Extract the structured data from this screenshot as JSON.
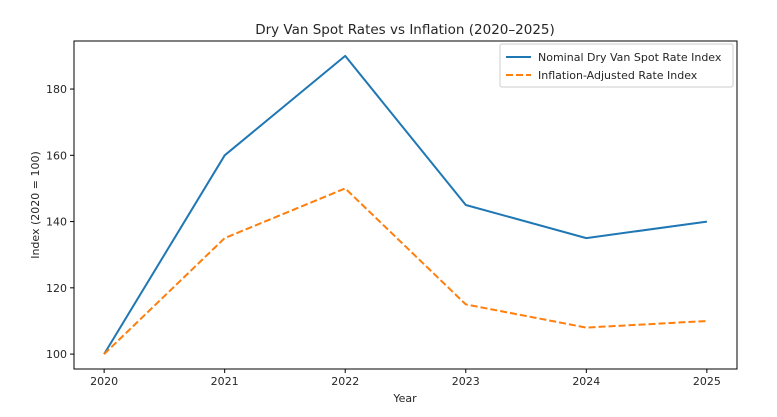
{
  "chart_data": {
    "type": "line",
    "title": "Dry Van Spot Rates vs Inflation (2020–2025)",
    "xlabel": "Year",
    "ylabel": "Index (2020 = 100)",
    "x": [
      2020,
      2021,
      2022,
      2023,
      2024,
      2025
    ],
    "xticks": [
      "2020",
      "2021",
      "2022",
      "2023",
      "2024",
      "2025"
    ],
    "yticks": [
      100,
      120,
      140,
      160,
      180
    ],
    "ytick_labels": [
      "100",
      "120",
      "140",
      "160",
      "180"
    ],
    "xlim": [
      2019.75,
      2025.25
    ],
    "ylim": [
      95.5,
      194.5
    ],
    "grid": false,
    "legend_position": "top-right",
    "series": [
      {
        "name": "Nominal Dry Van Spot Rate Index",
        "values": [
          100,
          160,
          190,
          145,
          135,
          140
        ],
        "color": "#1f77b4",
        "style": "solid"
      },
      {
        "name": "Inflation-Adjusted Rate Index",
        "values": [
          100,
          135,
          150,
          115,
          108,
          110
        ],
        "color": "#ff7f0e",
        "style": "dashed"
      }
    ]
  }
}
